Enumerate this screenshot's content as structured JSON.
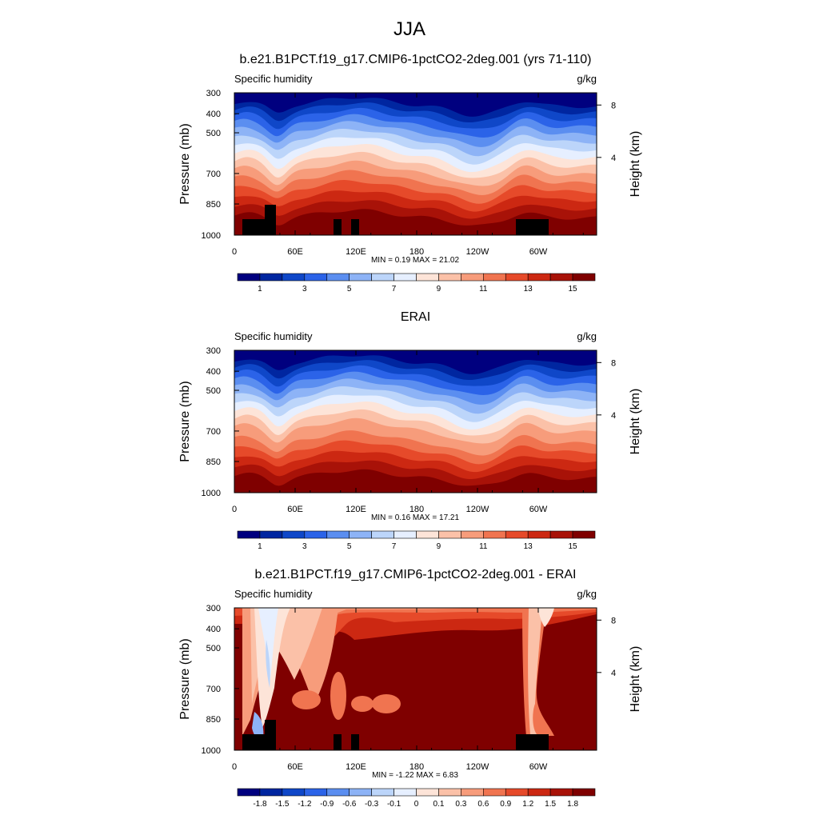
{
  "title": "JJA",
  "chart_data": [
    {
      "type": "heatmap",
      "title": "b.e21.B1PCT.f19_g17.CMIP6-1pctCO2-2deg.001 (yrs 71-110)",
      "variable": "Specific humidity",
      "units": "g/kg",
      "ylabel": "Pressure (mb)",
      "ylabel_right": "Height (km)",
      "y_ticks": [
        "300",
        "400",
        "500",
        "700",
        "850",
        "1000"
      ],
      "y_ticks_right": [
        "8",
        "4"
      ],
      "x_ticks": [
        "0",
        "60E",
        "120E",
        "180",
        "120W",
        "60W"
      ],
      "stats": "MIN =   0.19  MAX =  21.02",
      "colorbar": {
        "labels": [
          "1",
          "3",
          "5",
          "7",
          "9",
          "11",
          "13",
          "15"
        ],
        "colors": [
          "#00007f",
          "#0026a0",
          "#0f47c8",
          "#2b63e8",
          "#5b8ef0",
          "#8db3f6",
          "#bcd5fa",
          "#e6efff",
          "#fde4d8",
          "#fbc1a8",
          "#f79c7b",
          "#f07450",
          "#e64a2a",
          "#cc2812",
          "#a81208",
          "#7f0000"
        ]
      }
    },
    {
      "type": "heatmap",
      "title": "ERAI",
      "variable": "Specific humidity",
      "units": "g/kg",
      "ylabel": "Pressure (mb)",
      "ylabel_right": "Height (km)",
      "y_ticks": [
        "300",
        "400",
        "500",
        "700",
        "850",
        "1000"
      ],
      "y_ticks_right": [
        "8",
        "4"
      ],
      "x_ticks": [
        "0",
        "60E",
        "120E",
        "180",
        "120W",
        "60W"
      ],
      "stats": "MIN =   0.16  MAX =  17.21",
      "colorbar": {
        "labels": [
          "1",
          "3",
          "5",
          "7",
          "9",
          "11",
          "13",
          "15"
        ],
        "colors": [
          "#00007f",
          "#0026a0",
          "#0f47c8",
          "#2b63e8",
          "#5b8ef0",
          "#8db3f6",
          "#bcd5fa",
          "#e6efff",
          "#fde4d8",
          "#fbc1a8",
          "#f79c7b",
          "#f07450",
          "#e64a2a",
          "#cc2812",
          "#a81208",
          "#7f0000"
        ]
      }
    },
    {
      "type": "heatmap",
      "title": "b.e21.B1PCT.f19_g17.CMIP6-1pctCO2-2deg.001 - ERAI",
      "variable": "Specific humidity",
      "units": "g/kg",
      "ylabel": "Pressure (mb)",
      "ylabel_right": "Height (km)",
      "y_ticks": [
        "300",
        "400",
        "500",
        "700",
        "850",
        "1000"
      ],
      "y_ticks_right": [
        "8",
        "4"
      ],
      "x_ticks": [
        "0",
        "60E",
        "120E",
        "180",
        "120W",
        "60W"
      ],
      "stats": "MIN =  -1.22  MAX =   6.83",
      "colorbar": {
        "labels": [
          "-1.8",
          "-1.5",
          "-1.2",
          "-0.9",
          "-0.6",
          "-0.3",
          "-0.1",
          "0",
          "0.1",
          "0.3",
          "0.6",
          "0.9",
          "1.2",
          "1.5",
          "1.8"
        ],
        "colors": [
          "#00007f",
          "#0026a0",
          "#0f47c8",
          "#2b63e8",
          "#5b8ef0",
          "#8db3f6",
          "#bcd5fa",
          "#e6efff",
          "#fde4d8",
          "#fbc1a8",
          "#f79c7b",
          "#f07450",
          "#e64a2a",
          "#cc2812",
          "#a81208",
          "#7f0000"
        ]
      }
    }
  ]
}
